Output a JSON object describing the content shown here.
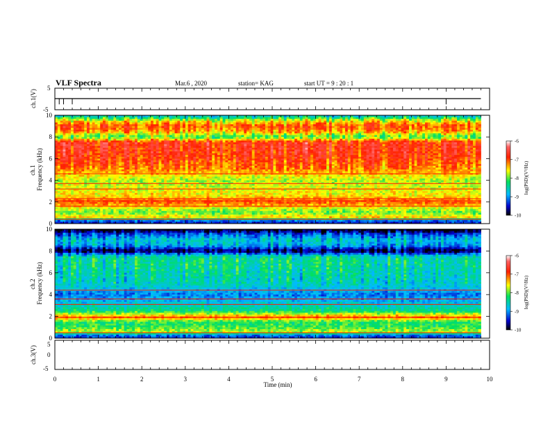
{
  "header": {
    "title": "VLF Spectra",
    "date": "Mar.6  , 2020",
    "station": "station= KAG",
    "start": "start  UT  =   9 : 20 : 1"
  },
  "chart_data": [
    {
      "type": "line",
      "panel": "ch1-waveform",
      "ylabel": "ch.1(V)",
      "ylim": [
        -5,
        5
      ],
      "yticks": [
        "5",
        "-5"
      ],
      "x_range": [
        0,
        10
      ],
      "data_extent_min": 9.8,
      "baseline": 0,
      "spike_times": [
        0.1,
        0.2,
        0.4,
        9.0
      ]
    },
    {
      "type": "heatmap",
      "panel": "ch1-spectrogram",
      "ylabel": "ch.1\nFrequency (kHz)",
      "ylim": [
        0,
        10
      ],
      "yticks": [
        "0",
        "2",
        "4",
        "6",
        "8",
        "10"
      ],
      "x_range": [
        0,
        10
      ],
      "data_extent_min": 9.8,
      "colorbar": {
        "label": "log(PSD)(V²/Hz)",
        "range": [
          -10,
          -6
        ],
        "ticks": [
          "-6",
          "-7",
          "-8",
          "-9",
          "-10"
        ]
      },
      "freq_profile": [
        {
          "f": 0.2,
          "level": -9.4
        },
        {
          "f": 0.6,
          "level": -7.4
        },
        {
          "f": 1.0,
          "level": -8.0
        },
        {
          "f": 1.5,
          "level": -7.6
        },
        {
          "f": 2.0,
          "level": -7.0
        },
        {
          "f": 2.5,
          "level": -7.5
        },
        {
          "f": 3.0,
          "level": -7.6
        },
        {
          "f": 3.5,
          "level": -7.7
        },
        {
          "f": 4.0,
          "level": -7.8
        },
        {
          "f": 4.5,
          "level": -7.5
        },
        {
          "f": 5.0,
          "level": -7.2
        },
        {
          "f": 6.0,
          "level": -6.9
        },
        {
          "f": 7.0,
          "level": -6.8
        },
        {
          "f": 7.5,
          "level": -6.8
        },
        {
          "f": 8.0,
          "level": -8.1
        },
        {
          "f": 8.5,
          "level": -7.3
        },
        {
          "f": 9.0,
          "level": -7.0
        },
        {
          "f": 9.5,
          "level": -7.6
        },
        {
          "f": 9.9,
          "level": -8.6
        }
      ],
      "bands_khz": [
        0.4,
        1.6,
        2.1,
        2.3,
        3.2,
        3.7,
        4.6
      ]
    },
    {
      "type": "heatmap",
      "panel": "ch2-spectrogram",
      "ylabel": "ch.2\nFrequency (kHz)",
      "ylim": [
        0,
        10
      ],
      "yticks": [
        "0",
        "2",
        "4",
        "6",
        "8",
        "10"
      ],
      "x_range": [
        0,
        10
      ],
      "data_extent_min": 9.8,
      "colorbar": {
        "label": "log(PSD)(V²/Hz)",
        "range": [
          -10,
          -6
        ],
        "ticks": [
          "-6",
          "-7",
          "-8",
          "-9",
          "-10"
        ]
      },
      "freq_profile": [
        {
          "f": 0.2,
          "level": -9.3
        },
        {
          "f": 0.6,
          "level": -7.7
        },
        {
          "f": 1.0,
          "level": -8.1
        },
        {
          "f": 1.5,
          "level": -8.2
        },
        {
          "f": 1.9,
          "level": -7.1
        },
        {
          "f": 2.5,
          "level": -8.3
        },
        {
          "f": 3.0,
          "level": -8.6
        },
        {
          "f": 3.5,
          "level": -8.9
        },
        {
          "f": 4.0,
          "level": -9.1
        },
        {
          "f": 4.5,
          "level": -8.8
        },
        {
          "f": 5.0,
          "level": -8.6
        },
        {
          "f": 6.0,
          "level": -8.5
        },
        {
          "f": 7.0,
          "level": -8.4
        },
        {
          "f": 7.5,
          "level": -8.5
        },
        {
          "f": 8.0,
          "level": -9.9
        },
        {
          "f": 8.5,
          "level": -8.9
        },
        {
          "f": 9.0,
          "level": -8.7
        },
        {
          "f": 9.5,
          "level": -9.2
        },
        {
          "f": 9.9,
          "level": -9.9
        }
      ],
      "bands_khz": [
        0.5,
        1.9,
        3.1,
        3.6,
        4.4
      ]
    },
    {
      "type": "line",
      "panel": "ch3-waveform",
      "ylabel": "ch.3(V)",
      "ylim": [
        -5,
        5
      ],
      "yticks": [
        "5",
        "0",
        "-5"
      ],
      "x_range": [
        0,
        10
      ],
      "xlabel": "Time (min)",
      "xticks": [
        "0",
        "1",
        "2",
        "3",
        "4",
        "5",
        "6",
        "7",
        "8",
        "9",
        "10"
      ]
    }
  ]
}
